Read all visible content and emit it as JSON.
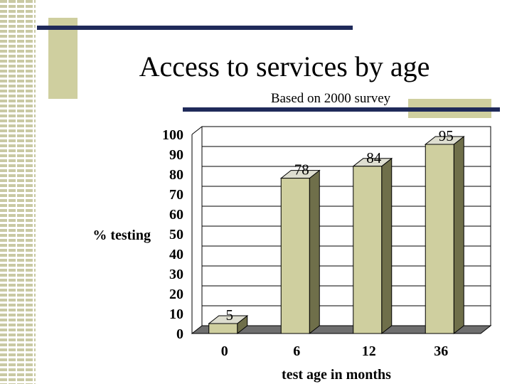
{
  "slide": {
    "title": "Access to services by age",
    "subtitle": "Based on 2000 survey"
  },
  "colors": {
    "bar_front": "#cfcf9f",
    "bar_side": "#6f6f4a",
    "bar_top": "#deded0",
    "floor": "#6e6e6e",
    "accent_line": "#1f2a5a"
  },
  "chart_data": {
    "type": "bar",
    "three_d": true,
    "categories": [
      "0",
      "6",
      "12",
      "36"
    ],
    "values": [
      5,
      78,
      84,
      95
    ],
    "data_labels": [
      "5",
      "78",
      "84",
      "95"
    ],
    "title": "",
    "xlabel": "test age in months",
    "ylabel": "% testing",
    "ylim": [
      0,
      100
    ],
    "yticks": [
      "0",
      "10",
      "20",
      "30",
      "40",
      "50",
      "60",
      "70",
      "80",
      "90",
      "100"
    ],
    "grid": true,
    "legend": "none"
  }
}
